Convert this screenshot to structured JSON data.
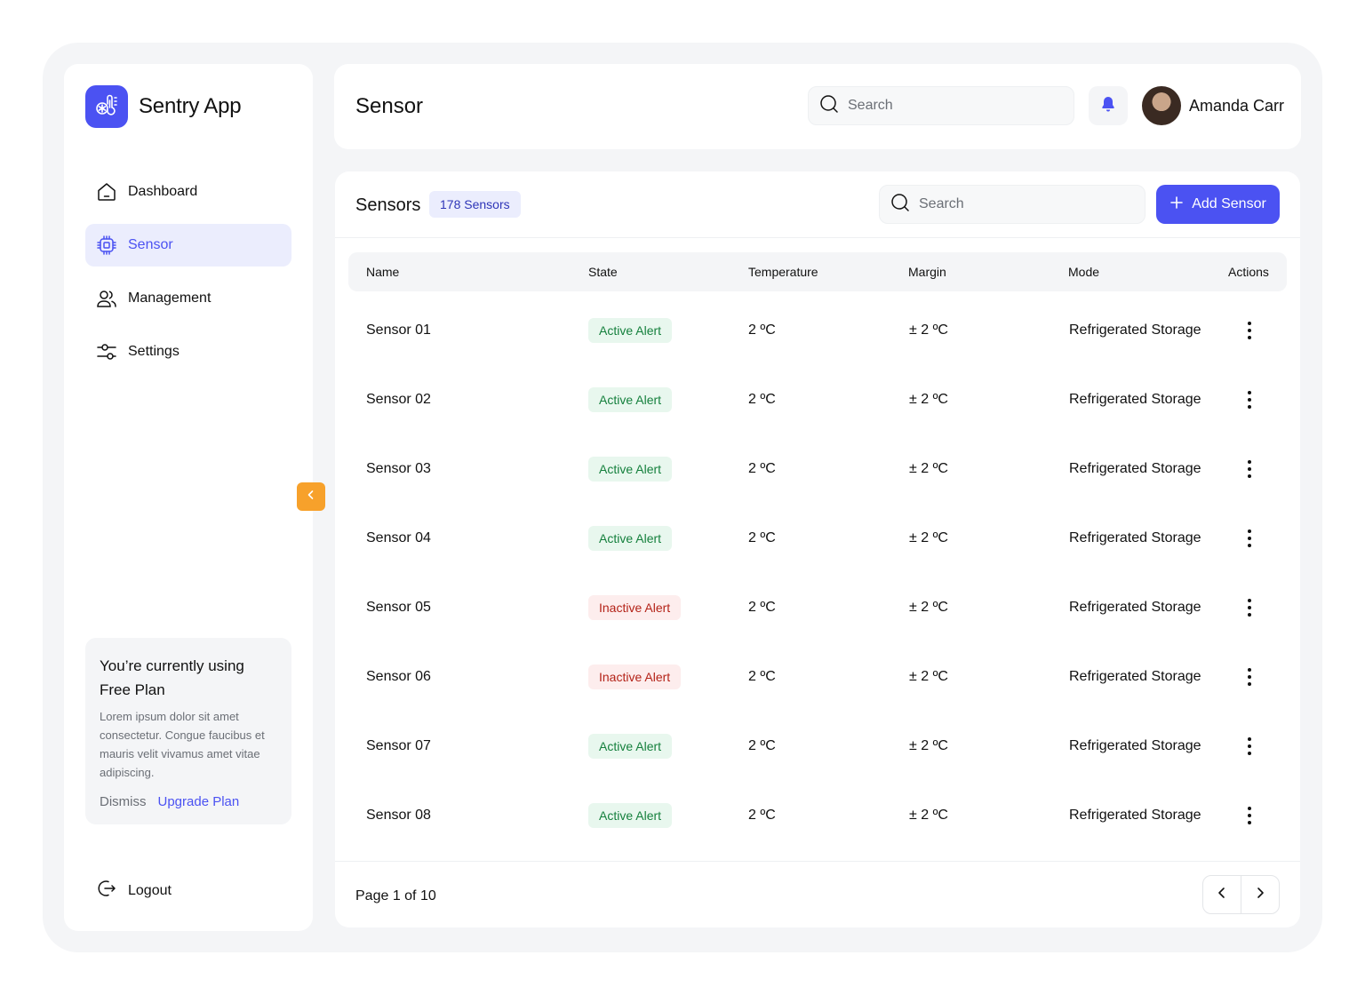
{
  "app": {
    "name": "Sentry App"
  },
  "sidebar": {
    "items": [
      {
        "label": "Dashboard",
        "icon": "home-icon"
      },
      {
        "label": "Sensor",
        "icon": "chip-icon",
        "active": true
      },
      {
        "label": "Management",
        "icon": "users-icon"
      },
      {
        "label": "Settings",
        "icon": "sliders-icon"
      }
    ],
    "plan": {
      "title": "You’re currently using Free Plan",
      "description": "Lorem ipsum dolor sit amet consectetur. Congue faucibus et mauris velit vivamus amet vitae adipiscing.",
      "dismiss_label": "Dismiss",
      "upgrade_label": "Upgrade Plan"
    },
    "logout_label": "Logout"
  },
  "header": {
    "title": "Sensor",
    "search_placeholder": "Search",
    "user_name": "Amanda Carr"
  },
  "sensors": {
    "title": "Sensors",
    "count_label": "178 Sensors",
    "search_placeholder": "Search",
    "add_label": "Add Sensor",
    "columns": {
      "name": "Name",
      "state": "State",
      "temperature": "Temperature",
      "margin": "Margin",
      "mode": "Mode",
      "actions": "Actions"
    },
    "rows": [
      {
        "name": "Sensor 01",
        "state": "Active Alert",
        "status": "active",
        "temperature": "2 ºC",
        "margin": "± 2 ºC",
        "mode": "Refrigerated Storage"
      },
      {
        "name": "Sensor 02",
        "state": "Active Alert",
        "status": "active",
        "temperature": "2 ºC",
        "margin": "± 2 ºC",
        "mode": "Refrigerated Storage"
      },
      {
        "name": "Sensor 03",
        "state": "Active Alert",
        "status": "active",
        "temperature": "2 ºC",
        "margin": "± 2 ºC",
        "mode": "Refrigerated Storage"
      },
      {
        "name": "Sensor 04",
        "state": "Active Alert",
        "status": "active",
        "temperature": "2 ºC",
        "margin": "± 2 ºC",
        "mode": "Refrigerated Storage"
      },
      {
        "name": "Sensor 05",
        "state": "Inactive Alert",
        "status": "inactive",
        "temperature": "2 ºC",
        "margin": "± 2 ºC",
        "mode": "Refrigerated Storage"
      },
      {
        "name": "Sensor 06",
        "state": "Inactive Alert",
        "status": "inactive",
        "temperature": "2 ºC",
        "margin": "± 2 ºC",
        "mode": "Refrigerated Storage"
      },
      {
        "name": "Sensor 07",
        "state": "Active Alert",
        "status": "active",
        "temperature": "2 ºC",
        "margin": "± 2 ºC",
        "mode": "Refrigerated Storage"
      },
      {
        "name": "Sensor 08",
        "state": "Active Alert",
        "status": "active",
        "temperature": "2 ºC",
        "margin": "± 2 ºC",
        "mode": "Refrigerated Storage"
      }
    ],
    "pagination": {
      "label": "Page 1 of 10"
    }
  },
  "colors": {
    "accent": "#4b52f2",
    "collapse": "#f7a12b",
    "active_bg": "#e8f7ee",
    "active_fg": "#15803d",
    "inactive_bg": "#fdeded",
    "inactive_fg": "#b42318"
  }
}
